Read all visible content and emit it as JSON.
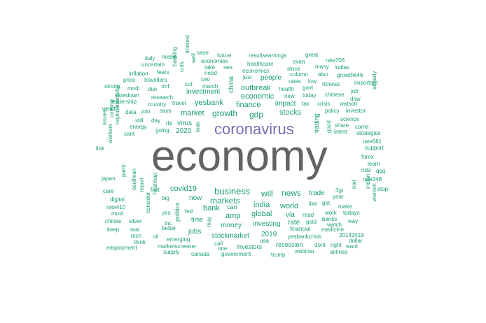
{
  "colors": {
    "primary": "#1b9e77",
    "secondary": "#7570b3",
    "dominant": "#636363"
  },
  "words": [
    {
      "text": "economy",
      "color": "dominant"
    },
    {
      "text": "coronavirus",
      "color": "secondary"
    },
    {
      "text": "business",
      "color": "primary"
    },
    {
      "text": "growth",
      "color": "primary"
    },
    {
      "text": "markets",
      "color": "primary"
    },
    {
      "text": "finance",
      "color": "primary"
    },
    {
      "text": "gdp",
      "color": "primary"
    },
    {
      "text": "stocks",
      "color": "primary"
    },
    {
      "text": "news",
      "color": "primary"
    },
    {
      "text": "will",
      "color": "primary"
    },
    {
      "text": "covid19",
      "color": "primary"
    },
    {
      "text": "india",
      "color": "primary"
    },
    {
      "text": "global",
      "color": "primary"
    },
    {
      "text": "bank",
      "color": "primary"
    },
    {
      "text": "amp",
      "color": "primary"
    },
    {
      "text": "world",
      "color": "primary"
    },
    {
      "text": "market",
      "color": "primary"
    },
    {
      "text": "economic",
      "color": "primary"
    },
    {
      "text": "impact",
      "color": "primary"
    },
    {
      "text": "outbreak",
      "color": "primary"
    },
    {
      "text": "china",
      "color": "primary"
    },
    {
      "text": "yesbank",
      "color": "primary"
    },
    {
      "text": "investment",
      "color": "primary"
    },
    {
      "text": "virus",
      "color": "primary"
    },
    {
      "text": "2020",
      "color": "primary"
    },
    {
      "text": "money",
      "color": "primary"
    },
    {
      "text": "investing",
      "color": "primary"
    },
    {
      "text": "stockmarket",
      "color": "primary"
    },
    {
      "text": "jobs",
      "color": "primary"
    },
    {
      "text": "trade",
      "color": "primary"
    },
    {
      "text": "rate",
      "color": "primary"
    },
    {
      "text": "2019",
      "color": "primary"
    },
    {
      "text": "people",
      "color": "primary"
    },
    {
      "text": "investors",
      "color": "primary"
    },
    {
      "text": "recession",
      "color": "primary"
    },
    {
      "text": "politics",
      "color": "primary"
    },
    {
      "text": "now",
      "color": "primary"
    },
    {
      "text": "time",
      "color": "primary"
    },
    {
      "text": "can",
      "color": "primary"
    },
    {
      "text": "via",
      "color": "primary"
    },
    {
      "text": "trading",
      "color": "primary"
    },
    {
      "text": "financial",
      "color": "primary"
    },
    {
      "text": "yesbankcrisis",
      "color": "primary"
    },
    {
      "text": "healthcare",
      "color": "primary"
    },
    {
      "text": "economics",
      "color": "primary"
    },
    {
      "text": "just",
      "color": "primary"
    },
    {
      "text": "health",
      "color": "primary"
    },
    {
      "text": "new",
      "color": "primary"
    },
    {
      "text": "today",
      "color": "primary"
    },
    {
      "text": "tax",
      "color": "primary"
    },
    {
      "text": "crisis",
      "color": "primary"
    },
    {
      "text": "policy",
      "color": "primary"
    },
    {
      "text": "good",
      "color": "primary"
    },
    {
      "text": "chinese",
      "color": "primary"
    },
    {
      "text": "march",
      "color": "primary"
    },
    {
      "text": "ceo",
      "color": "primary"
    },
    {
      "text": "need",
      "color": "primary"
    },
    {
      "text": "take",
      "color": "primary"
    },
    {
      "text": "see",
      "color": "primary"
    },
    {
      "text": "cut",
      "color": "primary"
    },
    {
      "text": "travel",
      "color": "primary"
    },
    {
      "text": "says",
      "color": "primary"
    },
    {
      "text": "rbi",
      "color": "primary"
    },
    {
      "text": "look",
      "color": "primary"
    },
    {
      "text": "going",
      "color": "primary"
    },
    {
      "text": "fed",
      "color": "primary"
    },
    {
      "text": "may",
      "color": "primary"
    },
    {
      "text": "big",
      "color": "primary"
    },
    {
      "text": "yes",
      "color": "primary"
    },
    {
      "text": "better",
      "color": "primary"
    },
    {
      "text": "emerging",
      "color": "primary"
    },
    {
      "text": "call",
      "color": "primary"
    },
    {
      "text": "one",
      "color": "primary"
    },
    {
      "text": "usa",
      "color": "primary"
    },
    {
      "text": "read",
      "color": "primary"
    },
    {
      "text": "like",
      "color": "primary"
    },
    {
      "text": "get",
      "color": "primary"
    },
    {
      "text": "gold",
      "color": "primary"
    },
    {
      "text": "make",
      "color": "primary"
    },
    {
      "text": "work",
      "color": "primary"
    },
    {
      "text": "banks",
      "color": "primary"
    },
    {
      "text": "watch",
      "color": "primary"
    },
    {
      "text": "medicine",
      "color": "primary"
    },
    {
      "text": "dont",
      "color": "primary"
    },
    {
      "text": "right",
      "color": "primary"
    },
    {
      "text": "3gt",
      "color": "primary"
    },
    {
      "text": "year",
      "color": "primary"
    },
    {
      "text": "todays",
      "color": "primary"
    },
    {
      "text": "way",
      "color": "primary"
    },
    {
      "text": "20142019",
      "color": "primary"
    },
    {
      "text": "dollar",
      "color": "primary"
    },
    {
      "text": "want",
      "color": "primary"
    },
    {
      "text": "airlines",
      "color": "primary"
    },
    {
      "text": "webinar",
      "color": "primary"
    },
    {
      "text": "trump",
      "color": "primary"
    },
    {
      "text": "government",
      "color": "primary"
    },
    {
      "text": "canada",
      "color": "primary"
    },
    {
      "text": "supply",
      "color": "primary"
    },
    {
      "text": "marketscreener",
      "color": "primary"
    },
    {
      "text": "employment",
      "color": "primary"
    },
    {
      "text": "think",
      "color": "primary"
    },
    {
      "text": "tech",
      "color": "primary"
    },
    {
      "text": "real",
      "color": "primary"
    },
    {
      "text": "oil",
      "color": "primary"
    },
    {
      "text": "inc",
      "color": "primary"
    },
    {
      "text": "first",
      "color": "primary"
    },
    {
      "text": "heatmap",
      "color": "primary"
    },
    {
      "text": "consider",
      "color": "primary"
    },
    {
      "text": "report",
      "color": "primary"
    },
    {
      "text": "osullivan",
      "color": "primary"
    },
    {
      "text": "silver",
      "color": "primary"
    },
    {
      "text": "must",
      "color": "primary"
    },
    {
      "text": "rate410",
      "color": "primary"
    },
    {
      "text": "digital",
      "color": "primary"
    },
    {
      "text": "chinas",
      "color": "primary"
    },
    {
      "text": "keep",
      "color": "primary"
    },
    {
      "text": "care",
      "color": "primary"
    },
    {
      "text": "japan",
      "color": "primary"
    },
    {
      "text": "panic",
      "color": "primary"
    },
    {
      "text": "link",
      "color": "primary"
    },
    {
      "text": "issues",
      "color": "primary"
    },
    {
      "text": "workers",
      "color": "primary"
    },
    {
      "text": "coming",
      "color": "primary"
    },
    {
      "text": "regionalsecurity",
      "color": "primary"
    },
    {
      "text": "cant",
      "color": "primary"
    },
    {
      "text": "energy",
      "color": "primary"
    },
    {
      "text": "still",
      "color": "primary"
    },
    {
      "text": "day",
      "color": "primary"
    },
    {
      "text": "data",
      "color": "primary"
    },
    {
      "text": "join",
      "color": "primary"
    },
    {
      "text": "country",
      "color": "primary"
    },
    {
      "text": "research",
      "color": "primary"
    },
    {
      "text": "wealth",
      "color": "primary"
    },
    {
      "text": "leadership",
      "color": "primary"
    },
    {
      "text": "slowdown",
      "color": "primary"
    },
    {
      "text": "strong",
      "color": "primary"
    },
    {
      "text": "modi",
      "color": "primary"
    },
    {
      "text": "due",
      "color": "primary"
    },
    {
      "text": "imf",
      "color": "primary"
    },
    {
      "text": "price",
      "color": "primary"
    },
    {
      "text": "travellers",
      "color": "primary"
    },
    {
      "text": "inflation",
      "color": "primary"
    },
    {
      "text": "fears",
      "color": "primary"
    },
    {
      "text": "banking",
      "color": "primary"
    },
    {
      "text": "cuts",
      "color": "primary"
    },
    {
      "text": "well",
      "color": "primary"
    },
    {
      "text": "interest",
      "color": "primary"
    },
    {
      "text": "uncertain",
      "color": "primary"
    },
    {
      "text": "italy",
      "color": "primary"
    },
    {
      "text": "media",
      "color": "primary"
    },
    {
      "text": "save",
      "color": "primary"
    },
    {
      "text": "future",
      "color": "primary"
    },
    {
      "text": "economies",
      "color": "primary"
    },
    {
      "text": "resultsearnings",
      "color": "primary"
    },
    {
      "text": "great",
      "color": "primary"
    },
    {
      "text": "even",
      "color": "primary"
    },
    {
      "text": "since",
      "color": "primary"
    },
    {
      "text": "column",
      "color": "primary"
    },
    {
      "text": "many",
      "color": "primary"
    },
    {
      "text": "indias",
      "color": "primary"
    },
    {
      "text": "rate706",
      "color": "primary"
    },
    {
      "text": "also",
      "color": "primary"
    },
    {
      "text": "growth646",
      "color": "primary"
    },
    {
      "text": "rates",
      "color": "primary"
    },
    {
      "text": "low",
      "color": "primary"
    },
    {
      "text": "govt",
      "color": "primary"
    },
    {
      "text": "rttnews",
      "color": "primary"
    },
    {
      "text": "important",
      "color": "primary"
    },
    {
      "text": "job",
      "color": "primary"
    },
    {
      "text": "dow",
      "color": "primary"
    },
    {
      "text": "watson",
      "color": "primary"
    },
    {
      "text": "already",
      "color": "primary"
    },
    {
      "text": "investor",
      "color": "primary"
    },
    {
      "text": "science",
      "color": "primary"
    },
    {
      "text": "share",
      "color": "primary"
    },
    {
      "text": "come",
      "color": "primary"
    },
    {
      "text": "latest",
      "color": "primary"
    },
    {
      "text": "strategies",
      "color": "primary"
    },
    {
      "text": "rate681",
      "color": "primary"
    },
    {
      "text": "support",
      "color": "primary"
    },
    {
      "text": "forex",
      "color": "primary"
    },
    {
      "text": "learn",
      "color": "primary"
    },
    {
      "text": "nda",
      "color": "primary"
    },
    {
      "text": "qqq",
      "color": "primary"
    },
    {
      "text": "rate348",
      "color": "primary"
    },
    {
      "text": "stop",
      "color": "primary"
    },
    {
      "text": "indian",
      "color": "primary"
    },
    {
      "text": "nail",
      "color": "primary"
    },
    {
      "text": "women",
      "color": "primary"
    }
  ]
}
